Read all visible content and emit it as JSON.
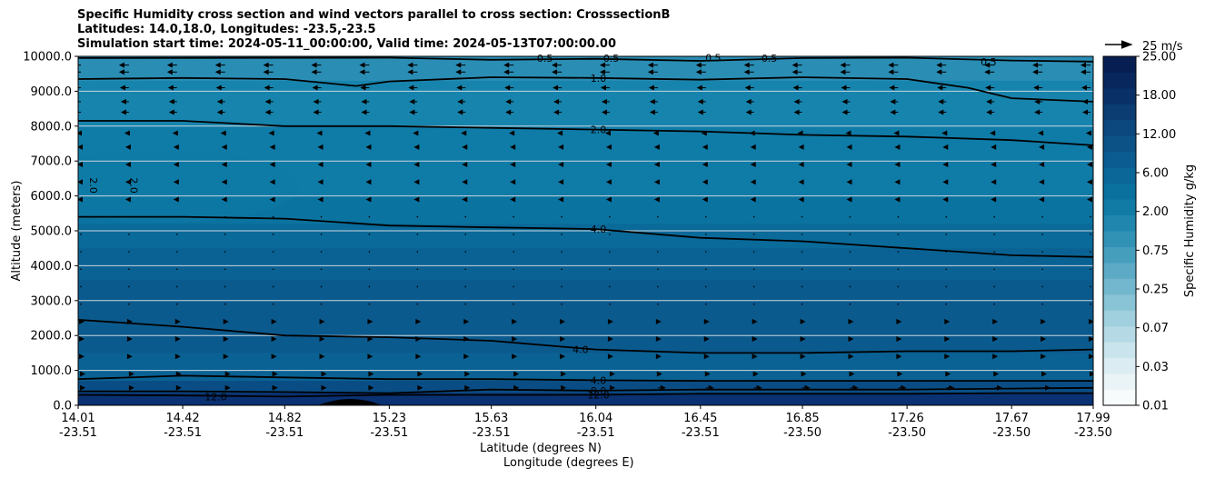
{
  "chart_data": {
    "type": "heatmap",
    "title_lines": [
      "Specific Humidity cross section and wind vectors parallel to cross section: CrosssectionB",
      "Latitudes: 14.0,18.0, Longitudes: -23.5,-23.5",
      "Simulation start time: 2024-05-11_00:00:00, Valid time: 2024-05-13T07:00:00.00"
    ],
    "ylabel": "Altitude (meters)",
    "xlabel_lat": "Latitude (degrees N)",
    "xlabel_lon": "Longitude (degrees E)",
    "ylim": [
      0,
      10000
    ],
    "yticks": [
      "0.0",
      "1000.0",
      "2000.0",
      "3000.0",
      "4000.0",
      "5000.0",
      "6000.0",
      "7000.0",
      "8000.0",
      "9000.0",
      "10000.0"
    ],
    "x_ticks": [
      {
        "lat": "14.01",
        "lon": "-23.51"
      },
      {
        "lat": "14.42",
        "lon": "-23.51"
      },
      {
        "lat": "14.82",
        "lon": "-23.51"
      },
      {
        "lat": "15.23",
        "lon": "-23.51"
      },
      {
        "lat": "15.63",
        "lon": "-23.51"
      },
      {
        "lat": "16.04",
        "lon": "-23.51"
      },
      {
        "lat": "16.45",
        "lon": "-23.51"
      },
      {
        "lat": "16.85",
        "lon": "-23.50"
      },
      {
        "lat": "17.26",
        "lon": "-23.50"
      },
      {
        "lat": "17.67",
        "lon": "-23.50"
      },
      {
        "lat": "17.99",
        "lon": "-23.50"
      }
    ],
    "grid": "horizontal",
    "colorbar": {
      "label": "Specific Humidity g/kg",
      "tick_labels": [
        "0.01",
        "0.03",
        "0.07",
        "0.25",
        "0.75",
        "2.00",
        "6.00",
        "12.00",
        "18.00",
        "25.00"
      ],
      "colors": [
        "#f7fbfc",
        "#eaf4f7",
        "#dbedf2",
        "#c9e4ec",
        "#b5dae5",
        "#a0cfde",
        "#89c3d6",
        "#72b7ce",
        "#5caac5",
        "#469ebd",
        "#3292b5",
        "#2086ad",
        "#127ba5",
        "#0a719e",
        "#0a6797",
        "#0b5c90",
        "#0c5287",
        "#0c477d",
        "#0b3c72",
        "#0a3167",
        "#08275c",
        "#071e52"
      ]
    },
    "contour_labels": [
      "0.5",
      "0.5",
      "0.5",
      "0.5",
      "0.5",
      "1.0",
      "2.0",
      "2.0",
      "2.0",
      "4.0",
      "4.0",
      "4.0",
      "8.0",
      "12.0",
      "12.0"
    ],
    "wind_reference": "25 m/s",
    "humidity_bands": [
      {
        "top": 10000,
        "color": "#2a8db4"
      },
      {
        "top": 9300,
        "color": "#1784ad"
      },
      {
        "top": 8000,
        "color": "#0f7ba7"
      },
      {
        "top": 6000,
        "color": "#0b73a0"
      },
      {
        "top": 5200,
        "color": "#0a6a99"
      },
      {
        "top": 4500,
        "color": "#0a6294"
      },
      {
        "top": 3600,
        "color": "#0b5a8e"
      },
      {
        "top": 1500,
        "color": "#0a6294"
      },
      {
        "top": 700,
        "color": "#0a4d85"
      },
      {
        "top": 350,
        "color": "#0a3172"
      }
    ],
    "contours": [
      {
        "label": "0.5",
        "points": [
          [
            14.01,
            9950
          ],
          [
            15.23,
            9960
          ],
          [
            15.63,
            9900
          ],
          [
            16.04,
            9930
          ],
          [
            16.45,
            9870
          ],
          [
            16.85,
            9950
          ],
          [
            17.26,
            9960
          ],
          [
            17.67,
            9880
          ],
          [
            17.99,
            9850
          ]
        ]
      },
      {
        "label": "1.0",
        "points": [
          [
            14.01,
            9350
          ],
          [
            14.42,
            9380
          ],
          [
            14.82,
            9350
          ],
          [
            15.1,
            9150
          ],
          [
            15.23,
            9280
          ],
          [
            15.63,
            9400
          ],
          [
            16.04,
            9380
          ],
          [
            16.45,
            9330
          ],
          [
            16.85,
            9400
          ],
          [
            17.26,
            9350
          ],
          [
            17.5,
            9100
          ],
          [
            17.67,
            8800
          ],
          [
            17.99,
            8700
          ]
        ]
      },
      {
        "label": "2.0",
        "points": [
          [
            14.01,
            8150
          ],
          [
            14.42,
            8150
          ],
          [
            14.82,
            8000
          ],
          [
            15.23,
            8000
          ],
          [
            15.63,
            7950
          ],
          [
            16.04,
            7900
          ],
          [
            16.45,
            7850
          ],
          [
            16.85,
            7750
          ],
          [
            17.26,
            7700
          ],
          [
            17.67,
            7600
          ],
          [
            17.99,
            7450
          ]
        ]
      },
      {
        "label": "4.0",
        "points": [
          [
            14.01,
            5400
          ],
          [
            14.42,
            5400
          ],
          [
            14.82,
            5350
          ],
          [
            15.23,
            5150
          ],
          [
            15.63,
            5100
          ],
          [
            16.04,
            5050
          ],
          [
            16.45,
            4800
          ],
          [
            16.85,
            4700
          ],
          [
            17.26,
            4500
          ],
          [
            17.67,
            4300
          ],
          [
            17.99,
            4250
          ]
        ]
      },
      {
        "label": "4.0",
        "points": [
          [
            14.01,
            2450
          ],
          [
            14.42,
            2250
          ],
          [
            14.82,
            2000
          ],
          [
            15.23,
            1950
          ],
          [
            15.63,
            1850
          ],
          [
            16.04,
            1600
          ],
          [
            16.45,
            1500
          ],
          [
            16.85,
            1500
          ],
          [
            17.26,
            1550
          ],
          [
            17.67,
            1550
          ],
          [
            17.99,
            1600
          ]
        ]
      },
      {
        "label": "4.0",
        "points": [
          [
            14.01,
            750
          ],
          [
            14.42,
            850
          ],
          [
            14.82,
            800
          ],
          [
            15.23,
            750
          ],
          [
            15.63,
            750
          ],
          [
            16.04,
            720
          ],
          [
            16.45,
            700
          ],
          [
            16.85,
            700
          ],
          [
            17.26,
            700
          ],
          [
            17.67,
            700
          ],
          [
            17.99,
            700
          ]
        ]
      },
      {
        "label": "8.0",
        "points": [
          [
            14.01,
            400
          ],
          [
            14.42,
            400
          ],
          [
            14.82,
            380
          ],
          [
            15.23,
            350
          ],
          [
            15.63,
            450
          ],
          [
            16.04,
            420
          ],
          [
            16.45,
            450
          ],
          [
            16.85,
            450
          ],
          [
            17.26,
            450
          ],
          [
            17.67,
            480
          ],
          [
            17.99,
            500
          ]
        ]
      },
      {
        "label": "12.0",
        "points": [
          [
            14.01,
            300
          ],
          [
            14.42,
            280
          ],
          [
            14.82,
            250
          ],
          [
            15.23,
            300
          ],
          [
            15.63,
            300
          ],
          [
            16.04,
            300
          ],
          [
            16.45,
            330
          ],
          [
            16.85,
            330
          ],
          [
            17.26,
            330
          ],
          [
            17.67,
            350
          ],
          [
            17.99,
            350
          ]
        ]
      }
    ]
  }
}
